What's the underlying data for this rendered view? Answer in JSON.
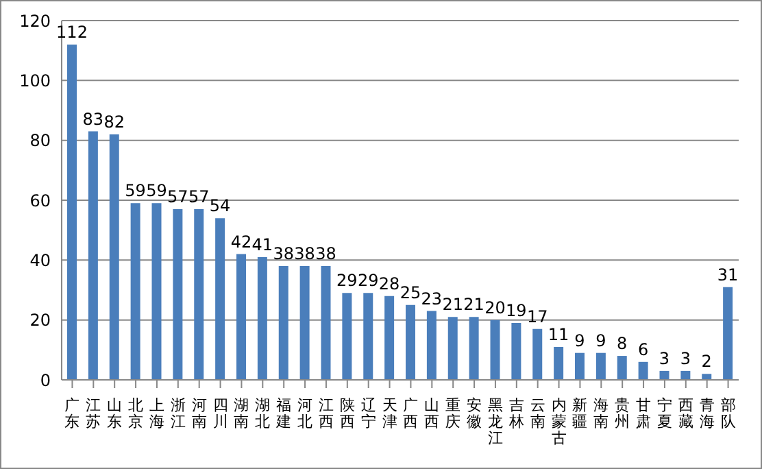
{
  "chart_data": {
    "type": "bar",
    "categories": [
      "广东",
      "江苏",
      "山东",
      "北京",
      "上海",
      "浙江",
      "河南",
      "四川",
      "湖南",
      "湖北",
      "福建",
      "河北",
      "江西",
      "陕西",
      "辽宁",
      "天津",
      "广西",
      "山西",
      "重庆",
      "安徽",
      "黑龙江",
      "吉林",
      "云南",
      "内蒙古",
      "新疆",
      "海南",
      "贵州",
      "甘肃",
      "宁夏",
      "西藏",
      "青海",
      "部队"
    ],
    "values": [
      112,
      83,
      82,
      59,
      59,
      57,
      57,
      54,
      42,
      41,
      38,
      38,
      38,
      29,
      29,
      28,
      25,
      23,
      21,
      21,
      20,
      19,
      17,
      11,
      9,
      9,
      8,
      6,
      3,
      3,
      2,
      31
    ],
    "color": "#4a7ebb",
    "ylim": [
      0,
      120
    ],
    "yticks": [
      0,
      20,
      40,
      60,
      80,
      100,
      120
    ],
    "grid": "y",
    "data_labels": true
  }
}
